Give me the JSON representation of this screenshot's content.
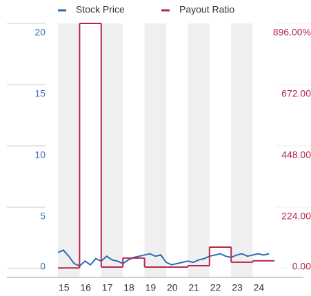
{
  "chart_data": {
    "type": "line",
    "xlim": [
      15,
      25
    ],
    "xticks": [
      15,
      16,
      17,
      18,
      19,
      20,
      21,
      22,
      23,
      24
    ],
    "ylim": [
      0,
      20
    ],
    "yticks": [
      0,
      5,
      10,
      15,
      20
    ],
    "y2lim": [
      0,
      896
    ],
    "y2ticks": [
      {
        "value": 0,
        "label": "0.00"
      },
      {
        "value": 224,
        "label": "224.00"
      },
      {
        "value": 448,
        "label": "448.00"
      },
      {
        "value": 672,
        "label": "672.00"
      },
      {
        "value": 896,
        "label": "896.00%"
      }
    ],
    "legend": "top",
    "series": [
      {
        "name": "Stock Price",
        "color": "#2a6ab3",
        "x": [
          15,
          15.25,
          15.5,
          15.75,
          16,
          16.25,
          16.5,
          16.75,
          17,
          17.25,
          17.5,
          17.75,
          18,
          18.25,
          18.5,
          18.75,
          19,
          19.25,
          19.5,
          19.75,
          20,
          20.25,
          20.5,
          20.75,
          21,
          21.25,
          21.5,
          21.75,
          22,
          22.25,
          22.5,
          22.75,
          23,
          23.25,
          23.5,
          23.75,
          24,
          24.25,
          24.5,
          24.75
        ],
        "values": [
          1.3,
          1.5,
          1.0,
          0.4,
          0.2,
          0.6,
          0.3,
          0.8,
          0.6,
          1.0,
          0.7,
          0.6,
          0.4,
          0.7,
          0.9,
          1.0,
          1.1,
          1.2,
          1.0,
          1.1,
          0.5,
          0.3,
          0.4,
          0.5,
          0.6,
          0.5,
          0.7,
          0.8,
          1.0,
          1.1,
          1.2,
          1.0,
          0.9,
          1.1,
          1.2,
          1.0,
          1.1,
          1.2,
          1.1,
          1.2
        ]
      },
      {
        "name": "Payout Ratio",
        "color": "#b5284b",
        "axis": "y2",
        "step": true,
        "x": [
          15,
          16,
          17,
          18,
          19,
          20,
          21,
          22,
          23,
          24
        ],
        "values": [
          2,
          896,
          5,
          38,
          5,
          5,
          10,
          78,
          23,
          28
        ]
      }
    ]
  }
}
